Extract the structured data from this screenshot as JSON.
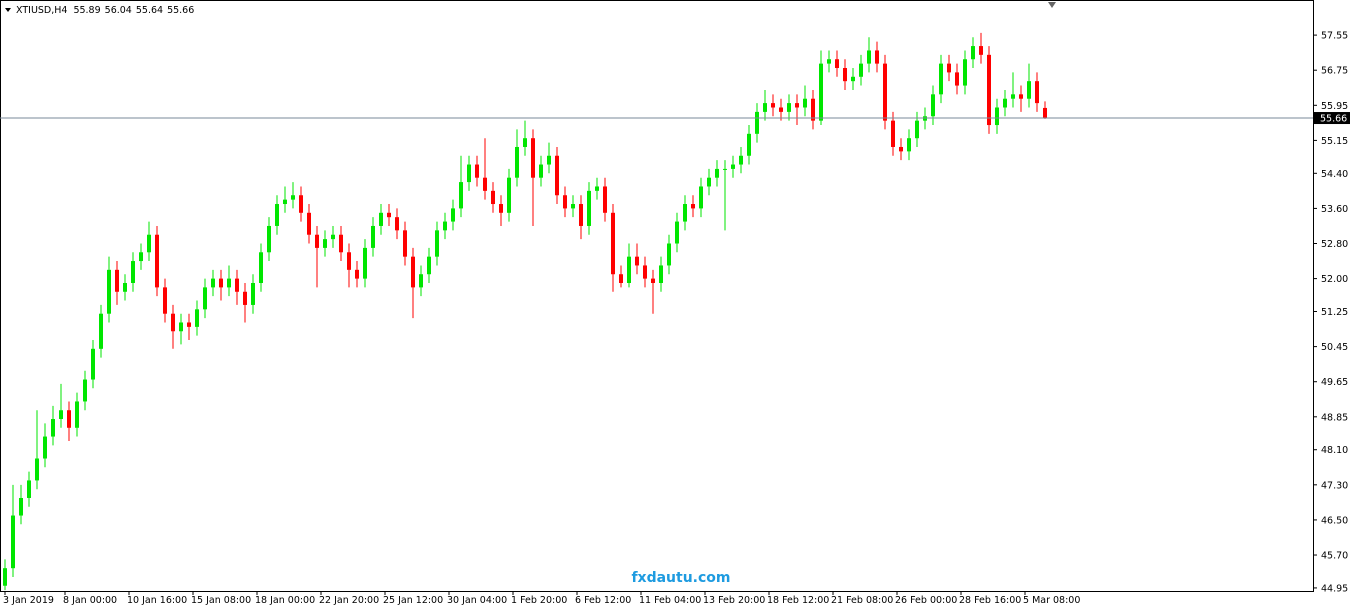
{
  "chart_data": {
    "type": "candlestick",
    "symbol": "XTIUSD,H4",
    "watermark": "fxdautu.com",
    "up_color": "#00e600",
    "down_color": "#ff0000",
    "ylim": [
      44.88,
      58.35
    ],
    "yticks": [
      57.55,
      56.75,
      55.95,
      55.15,
      {
        "value": 54.4,
        "label": "54.40"
      },
      {
        "value": 53.6,
        "label": "53.60"
      },
      {
        "value": 52.8,
        "label": "52.80"
      },
      {
        "value": 52,
        "label": "52.00"
      },
      51.25,
      50.45,
      49.65,
      48.85,
      {
        "value": 48.1,
        "label": "48.10"
      },
      {
        "value": 47.3,
        "label": "47.30"
      },
      {
        "value": 46.5,
        "label": "46.50"
      },
      {
        "value": 45.7,
        "label": "45.70"
      },
      44.95
    ],
    "xticks": [
      {
        "value": 0,
        "label": "3 Jan 2019"
      },
      {
        "value": 7.5,
        "label": "8 Jan 00:00"
      },
      {
        "value": 15.5,
        "label": "10 Jan 16:00"
      },
      {
        "value": 23.5,
        "label": "15 Jan 08:00"
      },
      {
        "value": 31.5,
        "label": "18 Jan 00:00"
      },
      {
        "value": 39.5,
        "label": "22 Jan 20:00"
      },
      {
        "value": 47.5,
        "label": "25 Jan 12:00"
      },
      {
        "value": 55.5,
        "label": "30 Jan 04:00"
      },
      {
        "value": 63.5,
        "label": "1 Feb 20:00"
      },
      {
        "value": 71.5,
        "label": "6 Feb 12:00"
      },
      {
        "value": 79.5,
        "label": "11 Feb 04:00"
      },
      {
        "value": 87.5,
        "label": "13 Feb 20:00"
      },
      {
        "value": 95.5,
        "label": "18 Feb 12:00"
      },
      {
        "value": 103.5,
        "label": "21 Feb 08:00"
      },
      {
        "value": 111.5,
        "label": "26 Feb 00:00"
      },
      {
        "value": 119.5,
        "label": "28 Feb 16:00"
      },
      {
        "value": 127.5,
        "label": "5 Mar 08:00"
      }
    ],
    "ohlc": [
      [
        45.0,
        45.6,
        44.9,
        45.4
      ],
      [
        45.4,
        47.3,
        45.2,
        46.6
      ],
      [
        46.6,
        47.3,
        46.4,
        47.0
      ],
      [
        47.0,
        47.6,
        46.8,
        47.4
      ],
      [
        47.4,
        49.0,
        47.2,
        47.9
      ],
      [
        47.9,
        48.7,
        47.7,
        48.4
      ],
      [
        48.4,
        49.1,
        48.2,
        48.8
      ],
      [
        48.8,
        49.6,
        48.6,
        49.0
      ],
      [
        49.0,
        49.2,
        48.3,
        48.6
      ],
      [
        48.6,
        49.4,
        48.4,
        49.2
      ],
      [
        49.2,
        49.9,
        49.0,
        49.7
      ],
      [
        49.7,
        50.6,
        49.5,
        50.4
      ],
      [
        50.4,
        51.4,
        50.2,
        51.2
      ],
      [
        51.2,
        52.5,
        51.0,
        52.2
      ],
      [
        52.2,
        52.4,
        51.4,
        51.7
      ],
      [
        51.7,
        52.1,
        51.5,
        51.9
      ],
      [
        51.9,
        52.6,
        51.7,
        52.4
      ],
      [
        52.4,
        52.8,
        52.2,
        52.6
      ],
      [
        52.6,
        53.3,
        52.4,
        53.0
      ],
      [
        53.0,
        53.2,
        51.6,
        51.8
      ],
      [
        51.8,
        52.0,
        51.0,
        51.2
      ],
      [
        51.2,
        51.4,
        50.4,
        50.8
      ],
      [
        50.8,
        51.2,
        50.5,
        51.0
      ],
      [
        51.0,
        51.2,
        50.6,
        50.9
      ],
      [
        50.9,
        51.5,
        50.7,
        51.3
      ],
      [
        51.3,
        52.0,
        51.1,
        51.8
      ],
      [
        51.8,
        52.2,
        51.6,
        52.0
      ],
      [
        52.0,
        52.2,
        51.5,
        51.8
      ],
      [
        51.8,
        52.3,
        51.6,
        52.0
      ],
      [
        52.0,
        52.2,
        51.4,
        51.7
      ],
      [
        51.7,
        51.9,
        51.0,
        51.4
      ],
      [
        51.4,
        52.1,
        51.2,
        51.9
      ],
      [
        51.9,
        52.8,
        51.7,
        52.6
      ],
      [
        52.6,
        53.4,
        52.4,
        53.2
      ],
      [
        53.2,
        53.9,
        53.0,
        53.7
      ],
      [
        53.7,
        54.1,
        53.5,
        53.8
      ],
      [
        53.8,
        54.2,
        53.6,
        53.9
      ],
      [
        53.9,
        54.1,
        53.3,
        53.5
      ],
      [
        53.5,
        53.7,
        52.8,
        53.0
      ],
      [
        53.0,
        53.2,
        51.8,
        52.7
      ],
      [
        52.7,
        53.1,
        52.5,
        52.9
      ],
      [
        52.9,
        53.2,
        52.7,
        53.0
      ],
      [
        53.0,
        53.2,
        52.4,
        52.6
      ],
      [
        52.6,
        52.8,
        51.8,
        52.2
      ],
      [
        52.2,
        52.4,
        51.8,
        52.0
      ],
      [
        52.0,
        52.9,
        51.8,
        52.7
      ],
      [
        52.7,
        53.4,
        52.5,
        53.2
      ],
      [
        53.2,
        53.7,
        53.0,
        53.5
      ],
      [
        53.5,
        53.7,
        53.2,
        53.4
      ],
      [
        53.4,
        53.6,
        52.9,
        53.1
      ],
      [
        53.1,
        53.3,
        52.3,
        52.5
      ],
      [
        52.5,
        52.7,
        51.1,
        51.8
      ],
      [
        51.8,
        52.3,
        51.6,
        52.1
      ],
      [
        52.1,
        52.7,
        51.9,
        52.5
      ],
      [
        52.5,
        53.3,
        52.3,
        53.1
      ],
      [
        53.1,
        53.5,
        52.9,
        53.3
      ],
      [
        53.3,
        53.8,
        53.1,
        53.6
      ],
      [
        53.6,
        54.8,
        53.4,
        54.2
      ],
      [
        54.2,
        54.8,
        54.0,
        54.6
      ],
      [
        54.6,
        54.8,
        54.1,
        54.3
      ],
      [
        54.3,
        55.2,
        53.8,
        54.0
      ],
      [
        54.0,
        54.2,
        53.5,
        53.7
      ],
      [
        53.7,
        53.9,
        53.2,
        53.5
      ],
      [
        53.5,
        54.5,
        53.3,
        54.3
      ],
      [
        54.3,
        55.4,
        54.1,
        55.0
      ],
      [
        55.0,
        55.6,
        54.8,
        55.2
      ],
      [
        55.2,
        55.4,
        53.2,
        54.3
      ],
      [
        54.3,
        54.8,
        54.1,
        54.6
      ],
      [
        54.6,
        55.1,
        54.4,
        54.8
      ],
      [
        54.8,
        55.0,
        53.7,
        53.9
      ],
      [
        53.9,
        54.1,
        53.4,
        53.6
      ],
      [
        53.6,
        53.9,
        53.4,
        53.7
      ],
      [
        53.7,
        53.9,
        52.9,
        53.2
      ],
      [
        53.2,
        54.2,
        53.0,
        54.0
      ],
      [
        54.0,
        54.3,
        53.8,
        54.1
      ],
      [
        54.1,
        54.3,
        53.3,
        53.5
      ],
      [
        53.5,
        53.7,
        51.7,
        52.1
      ],
      [
        52.1,
        52.3,
        51.8,
        51.9
      ],
      [
        51.9,
        52.8,
        51.8,
        52.5
      ],
      [
        52.5,
        52.8,
        52.1,
        52.3
      ],
      [
        52.3,
        52.5,
        51.8,
        52.0
      ],
      [
        52.0,
        52.2,
        51.2,
        51.9
      ],
      [
        51.9,
        52.5,
        51.7,
        52.3
      ],
      [
        52.3,
        53.0,
        52.1,
        52.8
      ],
      [
        52.8,
        53.5,
        52.6,
        53.3
      ],
      [
        53.3,
        53.9,
        53.1,
        53.7
      ],
      [
        53.7,
        53.9,
        53.4,
        53.6
      ],
      [
        53.6,
        54.3,
        53.4,
        54.1
      ],
      [
        54.1,
        54.5,
        53.9,
        54.3
      ],
      [
        54.3,
        54.7,
        54.1,
        54.5
      ],
      [
        54.5,
        54.7,
        53.1,
        54.5
      ],
      [
        54.5,
        54.8,
        54.3,
        54.6
      ],
      [
        54.6,
        55.0,
        54.4,
        54.8
      ],
      [
        54.8,
        55.5,
        54.6,
        55.3
      ],
      [
        55.3,
        56.0,
        55.1,
        55.8
      ],
      [
        55.8,
        56.3,
        55.6,
        56.0
      ],
      [
        56.0,
        56.2,
        55.7,
        55.9
      ],
      [
        55.9,
        56.1,
        55.6,
        55.8
      ],
      [
        55.8,
        56.2,
        55.6,
        56.0
      ],
      [
        56.0,
        56.2,
        55.5,
        55.9
      ],
      [
        55.9,
        56.4,
        55.7,
        56.1
      ],
      [
        56.1,
        56.3,
        55.4,
        55.6
      ],
      [
        55.6,
        57.2,
        55.5,
        56.9
      ],
      [
        56.9,
        57.2,
        56.7,
        57.0
      ],
      [
        57.0,
        57.2,
        56.6,
        56.8
      ],
      [
        56.8,
        57.0,
        56.3,
        56.5
      ],
      [
        56.5,
        56.8,
        56.3,
        56.6
      ],
      [
        56.6,
        57.1,
        56.4,
        56.9
      ],
      [
        56.9,
        57.5,
        56.7,
        57.2
      ],
      [
        57.2,
        57.4,
        56.7,
        56.9
      ],
      [
        56.9,
        57.1,
        55.4,
        55.6
      ],
      [
        55.6,
        55.8,
        54.8,
        55.0
      ],
      [
        55.0,
        55.2,
        54.7,
        54.9
      ],
      [
        54.9,
        55.4,
        54.7,
        55.2
      ],
      [
        55.2,
        55.8,
        55.0,
        55.6
      ],
      [
        55.6,
        55.9,
        55.4,
        55.7
      ],
      [
        55.7,
        56.4,
        55.5,
        56.2
      ],
      [
        56.2,
        57.1,
        56.0,
        56.9
      ],
      [
        56.9,
        57.1,
        56.5,
        56.7
      ],
      [
        56.7,
        56.9,
        56.2,
        56.4
      ],
      [
        56.4,
        57.2,
        56.2,
        57.0
      ],
      [
        57.0,
        57.5,
        56.8,
        57.3
      ],
      [
        57.3,
        57.6,
        56.9,
        57.1
      ],
      [
        57.1,
        57.3,
        55.3,
        55.5
      ],
      [
        55.5,
        56.1,
        55.3,
        55.9
      ],
      [
        55.9,
        56.3,
        55.7,
        56.1
      ],
      [
        56.1,
        56.7,
        55.9,
        56.2
      ],
      [
        56.2,
        56.4,
        55.8,
        56.1
      ],
      [
        56.1,
        56.9,
        55.9,
        56.5
      ],
      [
        56.5,
        56.7,
        55.8,
        56.0
      ],
      [
        55.89,
        56.04,
        55.64,
        55.66
      ]
    ]
  }
}
